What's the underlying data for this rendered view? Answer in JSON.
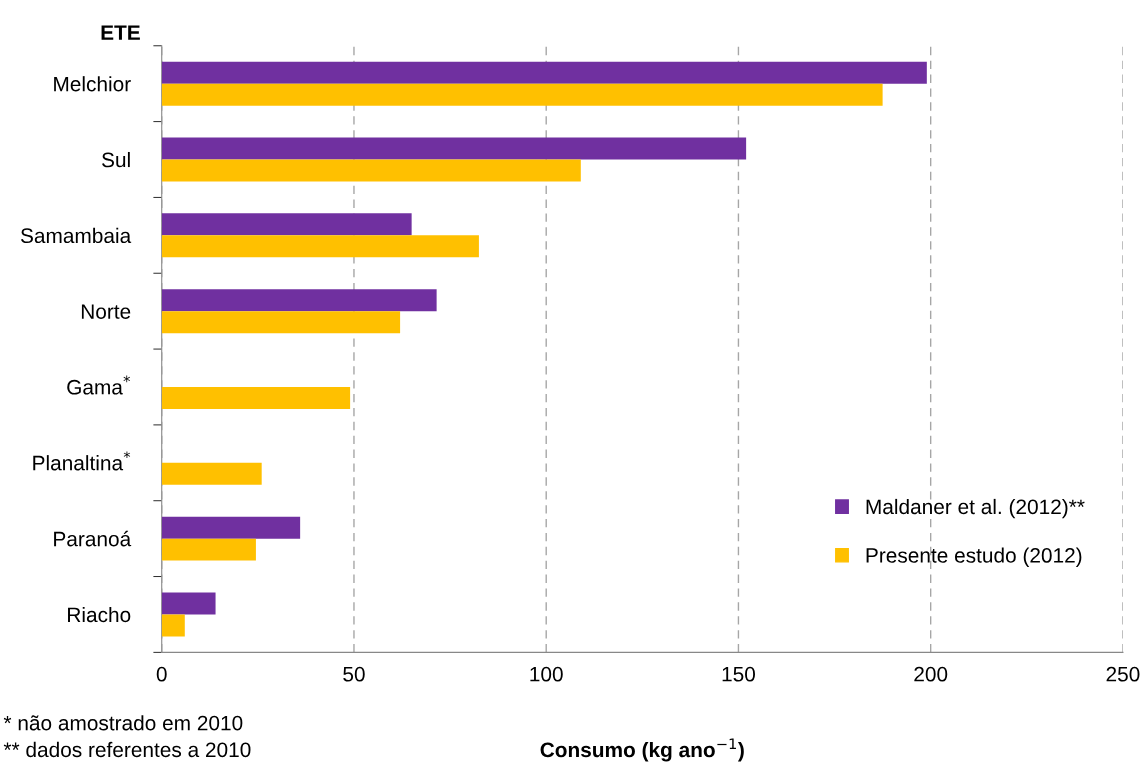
{
  "chart_data": {
    "type": "bar",
    "orientation": "horizontal",
    "ylabel": "ETE",
    "xlabel": "Consumo (kg ano$^{−1}$)",
    "categories": [
      "Melchior",
      "Sul",
      "Samambaia",
      "Norte",
      "Gama$^{*}$",
      "Planaltina$^{*}$",
      "Paranoá",
      "Riacho"
    ],
    "series": [
      {
        "name": "Maldaner et al. (2012)**",
        "color": "#7030a0",
        "values": [
          199,
          152,
          65,
          71.5,
          null,
          null,
          36,
          14
        ]
      },
      {
        "name": "Presente estudo (2012)",
        "color": "#ffc000",
        "values": [
          187.5,
          109,
          82.5,
          62,
          49,
          26,
          24.5,
          6
        ]
      }
    ],
    "xlim": [
      0,
      250
    ],
    "xticks": [
      0,
      50,
      100,
      150,
      200,
      250
    ],
    "grid": "x",
    "legend": "bottom right",
    "annotations": [
      "* não amostrado em 2010",
      "** dados referentes a 2010"
    ]
  }
}
